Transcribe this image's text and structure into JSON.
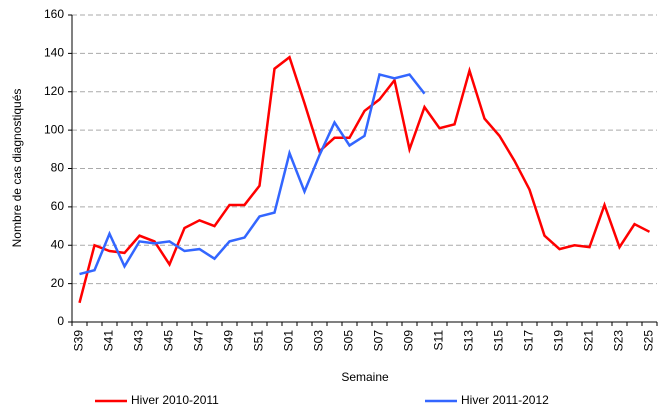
{
  "chart_data": {
    "type": "line",
    "x_label": "Semaine",
    "y_label": "Nombre de cas diagnostiqués",
    "categories": [
      "S39",
      null,
      "S41",
      null,
      "S43",
      null,
      "S45",
      null,
      "S47",
      null,
      "S49",
      null,
      "S51",
      null,
      "S01",
      null,
      "S03",
      null,
      "S05",
      null,
      "S07",
      null,
      "S09",
      null,
      "S11",
      null,
      "S13",
      null,
      "S15",
      null,
      "S17",
      null,
      "S19",
      null,
      "S21",
      null,
      "S23",
      null,
      "S25"
    ],
    "series": [
      {
        "name": "Hiver 2010-2011",
        "color": "#ff0000",
        "values": [
          10,
          40,
          37,
          36,
          45,
          42,
          30,
          49,
          53,
          50,
          61,
          61,
          71,
          132,
          138,
          114,
          89,
          96,
          96,
          110,
          116,
          126,
          90,
          112,
          101,
          103,
          131,
          106,
          97,
          84,
          69,
          45,
          38,
          40,
          39,
          61,
          39,
          51,
          47
        ]
      },
      {
        "name": "Hiver 2011-2012",
        "color": "#3366ff",
        "values": [
          25,
          27,
          46,
          29,
          42,
          41,
          42,
          37,
          38,
          33,
          42,
          44,
          55,
          57,
          88,
          68,
          87,
          104,
          92,
          97,
          129,
          127,
          129,
          119,
          null,
          null,
          null,
          null,
          null,
          null,
          null,
          null,
          null,
          null,
          null,
          null,
          null,
          null,
          null
        ]
      }
    ],
    "ylim": [
      0,
      160
    ],
    "yticks": [
      0,
      20,
      40,
      60,
      80,
      100,
      120,
      140,
      160
    ],
    "grid": true
  }
}
